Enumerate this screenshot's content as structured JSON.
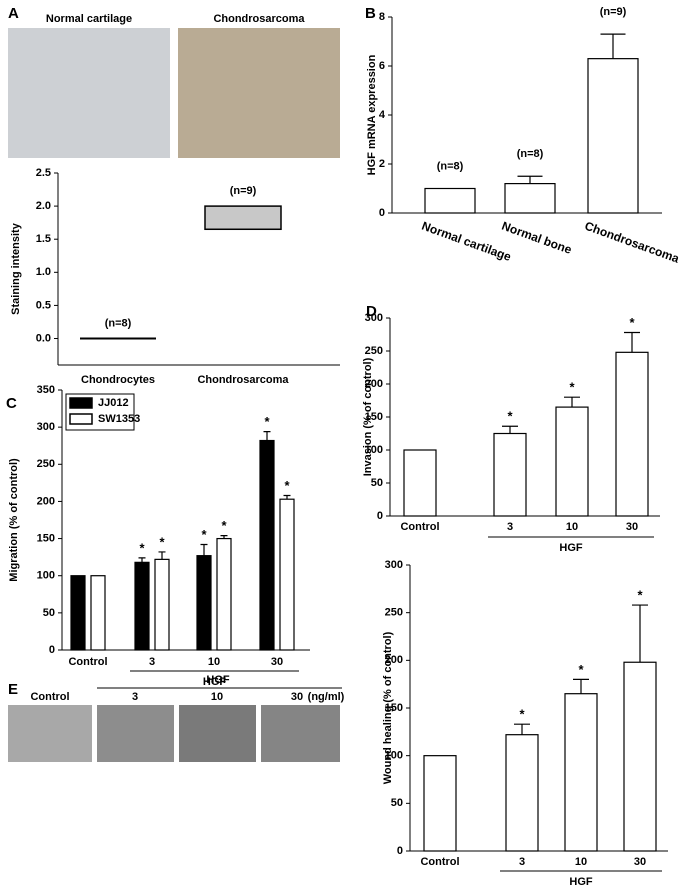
{
  "panels": {
    "a": "A",
    "b": "B",
    "c": "C",
    "d": "D",
    "e": "E"
  },
  "images": {
    "normal_title": "Normal cartilage",
    "chondro_title": "Chondrosarcoma",
    "wound_control": "Control",
    "wound_hgf": "HGF",
    "wound_doses": [
      "3",
      "10",
      "30"
    ],
    "wound_unit": "(ng/ml)"
  },
  "chart_data": [
    {
      "type": "range",
      "y_label": "Staining intensity",
      "categories": [
        "Chondrocytes",
        "Chondrosarcoma"
      ],
      "low": [
        0,
        1.65
      ],
      "high": [
        0,
        2.0
      ],
      "n_labels": [
        "(n=8)",
        "(n=9)"
      ],
      "color": "#c8c8c8",
      "ylim": [
        -0.4,
        2.5
      ],
      "yticks": [
        {
          "value": 0,
          "label": "0.0"
        },
        {
          "value": 0.5,
          "label": "0.5"
        },
        {
          "value": 1,
          "label": "1.0"
        },
        {
          "value": 1.5,
          "label": "1.5"
        },
        {
          "value": 2,
          "label": "2.0"
        },
        {
          "value": 2.5,
          "label": "2.5"
        }
      ]
    },
    {
      "type": "bar",
      "y_label": "HGF mRNA expression",
      "categories": [
        "Normal cartilage",
        "Normal bone",
        "Chondrosarcoma"
      ],
      "values": [
        1.0,
        1.2,
        6.3
      ],
      "errors": [
        null,
        0.3,
        1.0
      ],
      "n_labels": [
        "(n=8)",
        "(n=8)",
        "(n=9)"
      ],
      "color": "#ffffff",
      "ylim": [
        0,
        8
      ],
      "yticks": [
        0,
        2,
        4,
        6,
        8
      ]
    },
    {
      "type": "grouped_bar",
      "y_label": "Migration (% of control)",
      "x_group_label": "HGF",
      "categories": [
        "Control",
        "3",
        "10",
        "30"
      ],
      "series": [
        {
          "name": "JJ012",
          "color": "#000000",
          "values": [
            100,
            118,
            127,
            282
          ],
          "errors": [
            null,
            6,
            15,
            12
          ],
          "significance": [
            null,
            "*",
            "*",
            "*"
          ]
        },
        {
          "name": "SW1353",
          "color": "#ffffff",
          "values": [
            100,
            122,
            150,
            203
          ],
          "errors": [
            null,
            10,
            4,
            5
          ],
          "significance": [
            null,
            "*",
            "*",
            "*"
          ]
        }
      ],
      "ylim": [
        0,
        350
      ],
      "yticks": [
        0,
        50,
        100,
        150,
        200,
        250,
        300,
        350
      ]
    },
    {
      "type": "bar",
      "y_label": "Invasion (% of control)",
      "x_group_label": "HGF",
      "categories": [
        "Control",
        "3",
        "10",
        "30"
      ],
      "values": [
        100,
        125,
        165,
        248
      ],
      "errors": [
        null,
        11,
        15,
        30
      ],
      "significance": [
        null,
        "*",
        "*",
        "*"
      ],
      "color": "#ffffff",
      "ylim": [
        0,
        300
      ],
      "yticks": [
        0,
        50,
        100,
        150,
        200,
        250,
        300
      ]
    },
    {
      "type": "bar",
      "y_label": "Wound healing (% of control)",
      "x_group_label": "HGF",
      "categories": [
        "Control",
        "3",
        "10",
        "30"
      ],
      "values": [
        100,
        122,
        165,
        198
      ],
      "errors": [
        null,
        11,
        15,
        60
      ],
      "significance": [
        null,
        "*",
        "*",
        "*"
      ],
      "color": "#ffffff",
      "ylim": [
        0,
        300
      ],
      "yticks": [
        0,
        50,
        100,
        150,
        200,
        250,
        300
      ]
    }
  ]
}
